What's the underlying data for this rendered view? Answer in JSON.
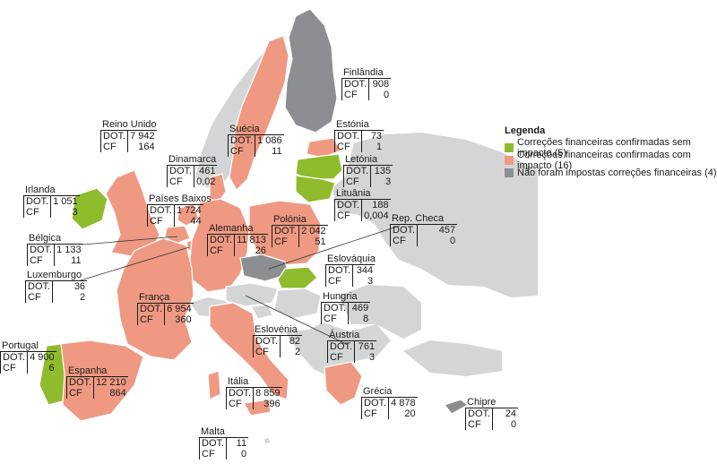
{
  "colors": {
    "green": "#8fbb2d",
    "salmon": "#ef9982",
    "dark_gray": "#8d8e91",
    "light_gray": "#d4d5d7",
    "line": "#333333"
  },
  "legend": {
    "title": "Legenda",
    "items": [
      {
        "label": "Correções financeiras confirmadas sem impacto (5)",
        "color": "#8fbb2d"
      },
      {
        "label": "Correções financeiras confirmadas com impacto (16)",
        "color": "#ef9982"
      },
      {
        "label": "Não foram impostas correções financeiras (4)",
        "color": "#8d8e91"
      }
    ]
  },
  "row_labels": {
    "dot": "DOT.",
    "cf": "CF"
  },
  "countries": [
    {
      "key": "finlandia",
      "name": "Finlândia",
      "dot": "908",
      "cf": "0"
    },
    {
      "key": "reino_unido",
      "name": "Reino Unido",
      "dot": "7 942",
      "cf": "164"
    },
    {
      "key": "suecia",
      "name": "Suécia",
      "dot": "1 086",
      "cf": "11"
    },
    {
      "key": "estonia",
      "name": "Estónia",
      "dot": "73",
      "cf": "1"
    },
    {
      "key": "dinamarca",
      "name": "Dinamarca",
      "dot": "461",
      "cf": "0,02"
    },
    {
      "key": "letonia",
      "name": "Letónia",
      "dot": "135",
      "cf": "3"
    },
    {
      "key": "irlanda",
      "name": "Irlanda",
      "dot": "1 051",
      "cf": "3"
    },
    {
      "key": "paises_baixos",
      "name": "Países Baixos",
      "dot": "1 724",
      "cf": "44"
    },
    {
      "key": "lituania",
      "name": "Lituânia",
      "dot": "188",
      "cf": "0,004"
    },
    {
      "key": "rep_checa",
      "name": "Rep. Checa",
      "dot": "457",
      "cf": "0"
    },
    {
      "key": "belgica",
      "name": "Bélgica",
      "dot": "1 133",
      "cf": "11"
    },
    {
      "key": "alemanha",
      "name": "Alemanha",
      "dot": "11 813",
      "cf": "26"
    },
    {
      "key": "polonia",
      "name": "Polónia",
      "dot": "2 042",
      "cf": "51"
    },
    {
      "key": "luxemburgo",
      "name": "Luxemburgo",
      "dot": "36",
      "cf": "2"
    },
    {
      "key": "eslovaquia",
      "name": "Eslováquia",
      "dot": "344",
      "cf": "3"
    },
    {
      "key": "franca",
      "name": "França",
      "dot": "6 954",
      "cf": "360"
    },
    {
      "key": "hungria",
      "name": "Hungria",
      "dot": "469",
      "cf": "8"
    },
    {
      "key": "portugal",
      "name": "Portugal",
      "dot": "4 900",
      "cf": "6"
    },
    {
      "key": "eslovenia",
      "name": "Eslovénia",
      "dot": "82",
      "cf": "2"
    },
    {
      "key": "austria",
      "name": "Áustria",
      "dot": "761",
      "cf": "3"
    },
    {
      "key": "espanha",
      "name": "Espanha",
      "dot": "12 210",
      "cf": "864"
    },
    {
      "key": "italia",
      "name": "Itália",
      "dot": "8 859",
      "cf": "396"
    },
    {
      "key": "grecia",
      "name": "Grécia",
      "dot": "4 878",
      "cf": "20"
    },
    {
      "key": "chipre",
      "name": "Chipre",
      "dot": "24",
      "cf": "0"
    },
    {
      "key": "malta",
      "name": "Malta",
      "dot": "11",
      "cf": "0"
    }
  ]
}
